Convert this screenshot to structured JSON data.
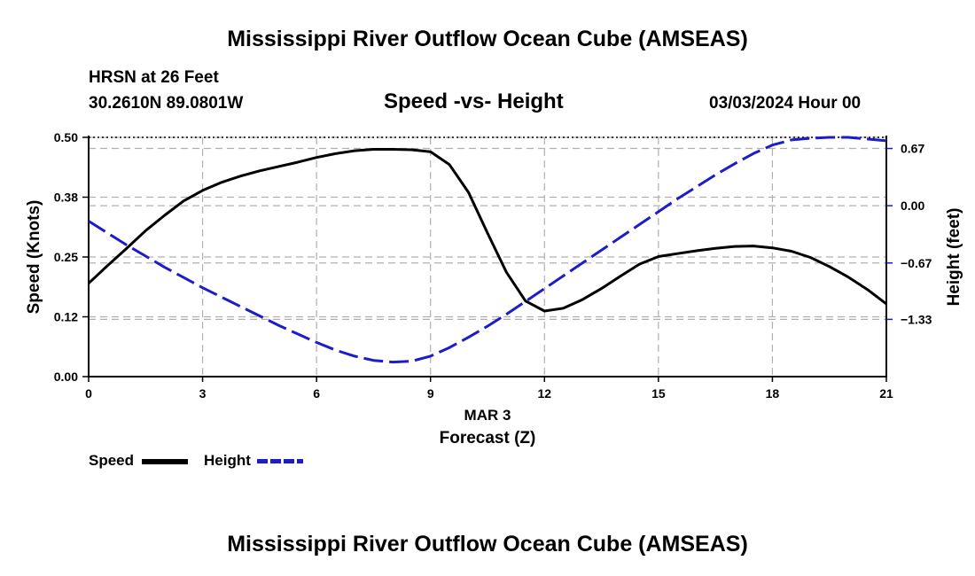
{
  "page": {
    "title": "Mississippi River Outflow Ocean Cube (AMSEAS)",
    "title_bottom": "Mississippi River Outflow Ocean Cube (AMSEAS)",
    "station": "HRSN at 26 Feet",
    "coords": "30.2610N  89.0801W",
    "subtitle": "Speed -vs- Height",
    "datetime": "03/03/2024 Hour 00"
  },
  "legend": {
    "speed_label": "Speed",
    "height_label": "Height"
  },
  "colors": {
    "speed": "#000000",
    "height": "#1c1cc8",
    "grid": "#b0b0b0"
  },
  "chart_data": {
    "type": "line",
    "title": "Speed -vs- Height",
    "xlabel": "Forecast (Z)",
    "xlabel_date": "MAR 3",
    "ylabel": "Speed (Knots)",
    "y2label": "Height (feet)",
    "xlim": [
      0,
      21
    ],
    "ylim": [
      0,
      0.5
    ],
    "y2lim": [
      -2.0,
      0.8
    ],
    "xticks": [
      "0",
      "3",
      "6",
      "9",
      "12",
      "15",
      "18",
      "21"
    ],
    "xtick_values": [
      0,
      3,
      6,
      9,
      12,
      15,
      18,
      21
    ],
    "yticks": [
      "0.00",
      "0.12",
      "0.25",
      "0.38",
      "0.50"
    ],
    "ytick_values": [
      0.0,
      0.125,
      0.25,
      0.375,
      0.5
    ],
    "y2ticks": [
      "0.67",
      "0.00",
      "−0.67",
      "−1.33"
    ],
    "y2tick_values": [
      0.67,
      0.0,
      -0.67,
      -1.33
    ],
    "grid": true,
    "series": [
      {
        "name": "Speed",
        "axis": "left",
        "style": "solid",
        "x": [
          0,
          0.5,
          1,
          1.5,
          2,
          2.5,
          3,
          3.5,
          4,
          4.5,
          5,
          5.5,
          6,
          6.5,
          7,
          7.5,
          8,
          8.5,
          9,
          9.5,
          10,
          10.5,
          11,
          11.5,
          12,
          12.5,
          13,
          13.5,
          14,
          14.5,
          15,
          15.5,
          16,
          16.5,
          17,
          17.5,
          18,
          18.5,
          19,
          19.5,
          20,
          20.5,
          21
        ],
        "values": [
          0.195,
          0.232,
          0.268,
          0.305,
          0.337,
          0.367,
          0.389,
          0.406,
          0.419,
          0.43,
          0.439,
          0.448,
          0.458,
          0.466,
          0.472,
          0.475,
          0.475,
          0.474,
          0.47,
          0.443,
          0.385,
          0.3,
          0.218,
          0.158,
          0.137,
          0.143,
          0.161,
          0.184,
          0.21,
          0.235,
          0.251,
          0.257,
          0.263,
          0.268,
          0.272,
          0.273,
          0.269,
          0.262,
          0.249,
          0.23,
          0.208,
          0.182,
          0.152
        ]
      },
      {
        "name": "Height",
        "axis": "right",
        "style": "dashed",
        "x": [
          0,
          0.5,
          1,
          1.5,
          2,
          2.5,
          3,
          3.5,
          4,
          4.5,
          5,
          5.5,
          6,
          6.5,
          7,
          7.5,
          8,
          8.5,
          9,
          9.5,
          10,
          10.5,
          11,
          11.5,
          12,
          12.5,
          13,
          13.5,
          14,
          14.5,
          15,
          15.5,
          16,
          16.5,
          17,
          17.5,
          18,
          18.5,
          19,
          19.5,
          20,
          20.5,
          21
        ],
        "values": [
          -0.18,
          -0.32,
          -0.46,
          -0.59,
          -0.72,
          -0.84,
          -0.96,
          -1.07,
          -1.18,
          -1.29,
          -1.4,
          -1.5,
          -1.6,
          -1.69,
          -1.76,
          -1.81,
          -1.83,
          -1.82,
          -1.76,
          -1.66,
          -1.54,
          -1.41,
          -1.27,
          -1.12,
          -0.97,
          -0.82,
          -0.67,
          -0.52,
          -0.37,
          -0.22,
          -0.07,
          0.08,
          0.22,
          0.36,
          0.49,
          0.61,
          0.71,
          0.77,
          0.79,
          0.8,
          0.8,
          0.78,
          0.76
        ]
      }
    ]
  }
}
